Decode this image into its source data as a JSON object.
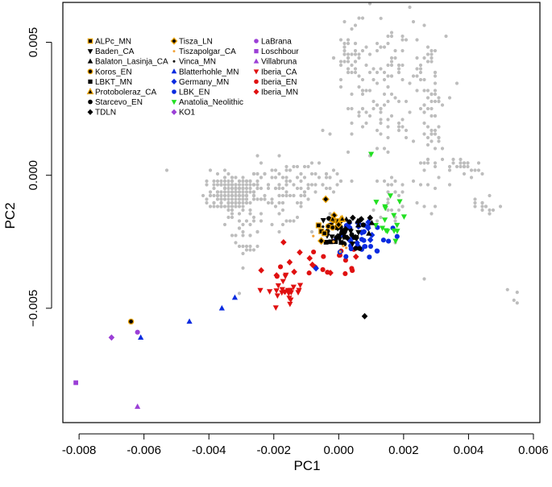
{
  "chart_data": {
    "type": "scatter",
    "xlabel": "PC1",
    "ylabel": "PC2",
    "xlim": [
      -0.0085,
      0.0062
    ],
    "ylim": [
      -0.0093,
      0.0065
    ],
    "xticks": [
      -0.008,
      -0.006,
      -0.004,
      -0.002,
      0.0,
      0.002,
      0.004,
      0.006
    ],
    "xtick_labels": [
      "-0.008",
      "-0.006",
      "-0.004",
      "-0.002",
      "0.000",
      "0.002",
      "0.004",
      "0.006"
    ],
    "yticks": [
      -0.005,
      0.0,
      0.005
    ],
    "ytick_labels": [
      "−0.005",
      "0.000",
      "0.005"
    ],
    "grid": false,
    "legend_columns": [
      [
        {
          "name": "ALPc_MN",
          "marker": "square",
          "color": "#000000",
          "edge": "#e8a000"
        },
        {
          "name": "Baden_CA",
          "marker": "triangle-down",
          "color": "#000000"
        },
        {
          "name": "Balaton_Lasinja_CA",
          "marker": "triangle-up",
          "color": "#000000"
        },
        {
          "name": "Koros_EN",
          "marker": "circle",
          "color": "#000000",
          "edge": "#e8a000"
        },
        {
          "name": "LBKT_MN",
          "marker": "square",
          "color": "#000000"
        },
        {
          "name": "Protoboleraz_CA",
          "marker": "triangle-up",
          "color": "#000000",
          "edge": "#e8a000"
        },
        {
          "name": "Starcevo_EN",
          "marker": "circle",
          "color": "#000000"
        },
        {
          "name": "TDLN",
          "marker": "diamond",
          "color": "#000000"
        }
      ],
      [
        {
          "name": "Tisza_LN",
          "marker": "diamond",
          "color": "#000000",
          "edge": "#e8a000"
        },
        {
          "name": "Tiszapolgar_CA",
          "marker": "dot",
          "color": "#f2a33a"
        },
        {
          "name": "Vinca_MN",
          "marker": "dot",
          "color": "#000000"
        },
        {
          "name": "Blatterhohle_MN",
          "marker": "triangle-up",
          "color": "#0a2be0"
        },
        {
          "name": "Germany_MN",
          "marker": "diamond",
          "color": "#0a2be0"
        },
        {
          "name": "LBK_EN",
          "marker": "circle",
          "color": "#0a2be0"
        },
        {
          "name": "Anatolia_Neolithic",
          "marker": "triangle-down",
          "color": "#22e022"
        },
        {
          "name": "KO1",
          "marker": "diamond",
          "color": "#9b3fd6"
        }
      ],
      [
        {
          "name": "LaBrana",
          "marker": "circle",
          "color": "#9b3fd6"
        },
        {
          "name": "Loschbour",
          "marker": "square",
          "color": "#9b3fd6"
        },
        {
          "name": "Villabruna",
          "marker": "triangle-up",
          "color": "#9b3fd6"
        },
        {
          "name": "Iberia_CA",
          "marker": "triangle-down",
          "color": "#e01010"
        },
        {
          "name": "Iberia_EN",
          "marker": "circle",
          "color": "#e01010"
        },
        {
          "name": "Iberia_MN",
          "marker": "diamond",
          "color": "#e01010"
        }
      ]
    ],
    "background_modern": {
      "name": "modern reference samples",
      "color": "#bdbdbd",
      "clusters": [
        {
          "cx": -0.0033,
          "cy": -0.0007,
          "sx": 0.00035,
          "sy": 0.00035,
          "n": 160
        },
        {
          "cx": -0.0025,
          "cy": -0.0004,
          "sx": 0.0008,
          "sy": 0.0005,
          "n": 80
        },
        {
          "cx": -0.0028,
          "cy": -0.002,
          "sx": 0.00025,
          "sy": 0.0007,
          "n": 40
        },
        {
          "cx": -0.0017,
          "cy": -0.0008,
          "sx": 0.0004,
          "sy": 0.0005,
          "n": 35
        },
        {
          "cx": -0.0008,
          "cy": -0.0003,
          "sx": 0.0007,
          "sy": 0.0004,
          "n": 40
        },
        {
          "cx": 0.0003,
          "cy": 0.0045,
          "sx": 0.0002,
          "sy": 0.0004,
          "n": 25
        },
        {
          "cx": 0.0008,
          "cy": 0.003,
          "sx": 0.0005,
          "sy": 0.0014,
          "n": 70
        },
        {
          "cx": 0.0019,
          "cy": 0.0035,
          "sx": 0.0004,
          "sy": 0.0012,
          "n": 60
        },
        {
          "cx": 0.0028,
          "cy": 0.0022,
          "sx": 0.00025,
          "sy": 0.0015,
          "n": 80
        },
        {
          "cx": 0.0039,
          "cy": 0.0003,
          "sx": 0.00025,
          "sy": 0.0002,
          "n": 25
        },
        {
          "cx": 0.0045,
          "cy": -0.0012,
          "sx": 0.0003,
          "sy": 0.0003,
          "n": 15
        },
        {
          "cx": 0.0018,
          "cy": -0.0008,
          "sx": 0.0004,
          "sy": 0.0006,
          "n": 30
        }
      ],
      "singles": [
        [
          0.0052,
          -0.0043
        ],
        [
          0.0055,
          -0.0044
        ],
        [
          0.0054,
          -0.0047
        ],
        [
          0.0055,
          -0.0048
        ],
        [
          0.0013,
          0.0059
        ]
      ]
    },
    "ancient_clusters": [
      {
        "name": "Iberia_CA",
        "cx": -0.0016,
        "cy": -0.0044,
        "sx": 0.00028,
        "sy": 0.00035,
        "n": 26
      },
      {
        "name": "Iberia_EN",
        "cx": -0.0005,
        "cy": -0.0032,
        "sx": 0.0006,
        "sy": 0.0004,
        "n": 14
      },
      {
        "name": "Iberia_MN",
        "cx": -0.0009,
        "cy": -0.0031,
        "sx": 0.0006,
        "sy": 0.0004,
        "n": 10
      },
      {
        "name": "LBK_EN",
        "cx": 0.0008,
        "cy": -0.0023,
        "sx": 0.0004,
        "sy": 0.0004,
        "n": 26
      },
      {
        "name": "Germany_MN",
        "cx": 0.0004,
        "cy": -0.0022,
        "sx": 0.0005,
        "sy": 0.0004,
        "n": 16
      },
      {
        "name": "Anatolia_Neolithic",
        "cx": 0.0014,
        "cy": -0.0017,
        "sx": 0.0003,
        "sy": 0.0004,
        "n": 14
      },
      {
        "name": "Baden_CA",
        "cx": -0.0001,
        "cy": -0.0023,
        "sx": 0.0003,
        "sy": 0.0004,
        "n": 14
      },
      {
        "name": "Starcevo_EN",
        "cx": 0.0002,
        "cy": -0.0022,
        "sx": 0.0003,
        "sy": 0.0003,
        "n": 12
      },
      {
        "name": "TDLN",
        "cx": 0.0003,
        "cy": -0.0019,
        "sx": 0.0003,
        "sy": 0.0003,
        "n": 10
      },
      {
        "name": "LBKT_MN",
        "cx": 0.0,
        "cy": -0.0025,
        "sx": 0.0002,
        "sy": 0.0003,
        "n": 6
      },
      {
        "name": "Balaton_Lasinja_CA",
        "cx": 0.0005,
        "cy": -0.0018,
        "sx": 0.0003,
        "sy": 0.0003,
        "n": 6
      },
      {
        "name": "Vinca_MN",
        "cx": 0.0,
        "cy": -0.0021,
        "sx": 0.0003,
        "sy": 0.0003,
        "n": 6
      },
      {
        "name": "Tiszapolgar_CA",
        "cx": -0.0002,
        "cy": -0.0024,
        "sx": 0.0003,
        "sy": 0.0003,
        "n": 5
      },
      {
        "name": "ALPc_MN",
        "cx": -0.0003,
        "cy": -0.002,
        "sx": 0.0002,
        "sy": 0.0002,
        "n": 4
      },
      {
        "name": "Tisza_LN",
        "cx": -0.0004,
        "cy": -0.0018,
        "sx": 0.0003,
        "sy": 0.0003,
        "n": 3
      },
      {
        "name": "Koros_EN",
        "cx": -0.0002,
        "cy": -0.0019,
        "sx": 0.0002,
        "sy": 0.0002,
        "n": 3
      },
      {
        "name": "Protoboleraz_CA",
        "cx": -0.0001,
        "cy": -0.0016,
        "sx": 0.0002,
        "sy": 0.0002,
        "n": 3
      }
    ],
    "individual_points": [
      {
        "name": "Loschbour",
        "x": -0.0081,
        "y": -0.0078
      },
      {
        "name": "Villabruna",
        "x": -0.0062,
        "y": -0.0087
      },
      {
        "name": "KO1",
        "x": -0.007,
        "y": -0.0061
      },
      {
        "name": "LaBrana",
        "x": -0.0062,
        "y": -0.0059
      },
      {
        "name": "Koros_EN",
        "x": -0.0064,
        "y": -0.0055
      },
      {
        "name": "Blatterhohle_MN",
        "x": -0.0061,
        "y": -0.0061
      },
      {
        "name": "Blatterhohle_MN",
        "x": -0.0046,
        "y": -0.0055
      },
      {
        "name": "Blatterhohle_MN",
        "x": -0.0036,
        "y": -0.005
      },
      {
        "name": "Blatterhohle_MN",
        "x": -0.0032,
        "y": -0.0046
      },
      {
        "name": "TDLN",
        "x": 0.0008,
        "y": -0.0053
      },
      {
        "name": "Anatolia_Neolithic",
        "x": 0.001,
        "y": 0.0008
      },
      {
        "name": "Tisza_LN",
        "x": -0.0004,
        "y": -0.0009
      },
      {
        "name": "Iberia_EN",
        "x": 0.0002,
        "y": -0.0037
      },
      {
        "name": "Iberia_EN",
        "x": 0.0004,
        "y": -0.0035
      },
      {
        "name": "Iberia_EN",
        "x": -0.0019,
        "y": -0.0038
      },
      {
        "name": "Iberia_MN",
        "x": -0.0012,
        "y": -0.0029
      },
      {
        "name": "Germany_MN",
        "x": -0.0007,
        "y": -0.0035
      },
      {
        "name": "LBK_EN",
        "x": 0.0018,
        "y": -0.0023
      },
      {
        "name": "Anatolia_Neolithic",
        "x": 0.0017,
        "y": -0.0015
      },
      {
        "name": "Anatolia_Neolithic",
        "x": 0.0015,
        "y": -0.0021
      }
    ]
  }
}
